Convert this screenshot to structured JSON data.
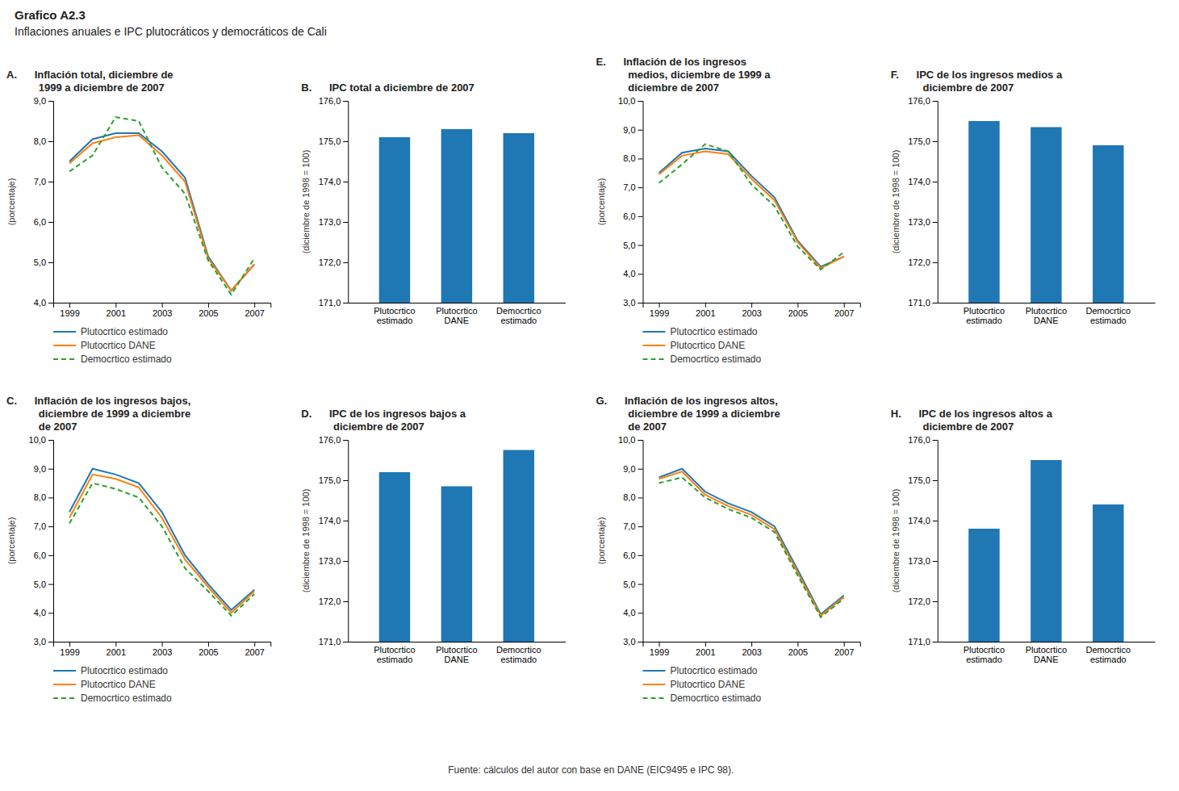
{
  "title": "Grafico A2.3",
  "subtitle": "Inflaciones anuales e IPC plutocráticos y democráticos de Cali",
  "annotations": [
    "Fuente: cálculos del autor con base en DANE (EIC9495 e IPC 98)."
  ],
  "chart_data": [
    {
      "type": "line",
      "title": "A.      Inflación total, diciembre de\n           1999 a diciembre de 2007",
      "ylabel": "(porcentaje)",
      "x": [
        1999,
        2000,
        2001,
        2002,
        2003,
        2004,
        2005,
        2006,
        2007
      ],
      "xlim": [
        1998.3,
        2007.7
      ],
      "xticks": [
        1999,
        2001,
        2003,
        2005,
        2007
      ],
      "ylim": [
        4.0,
        9.0
      ],
      "yticks": [
        {
          "value": 4.0,
          "label": "4,0"
        },
        {
          "value": 5.0,
          "label": "5,0"
        },
        {
          "value": 6.0,
          "label": "6,0"
        },
        {
          "value": 7.0,
          "label": "7,0"
        },
        {
          "value": 8.0,
          "label": "8,0"
        },
        {
          "value": 9.0,
          "label": "9,0"
        }
      ],
      "series": [
        {
          "name": "Plutocrtico estimado",
          "values": [
            7.5,
            8.05,
            8.2,
            8.2,
            7.75,
            7.1,
            5.15,
            4.3,
            4.95
          ]
        },
        {
          "name": "Plutocrtico DANE",
          "values": [
            7.45,
            7.95,
            8.1,
            8.15,
            7.65,
            7.0,
            5.1,
            4.3,
            4.95
          ]
        },
        {
          "name": "Democrtico estimado",
          "values": [
            7.25,
            7.65,
            8.6,
            8.5,
            7.35,
            6.7,
            5.05,
            4.2,
            5.1
          ],
          "line_style": "dashed"
        }
      ],
      "legend": "bottom",
      "grid": false
    },
    {
      "type": "bar",
      "title": "B.      IPC total a diciembre de 2007",
      "ylabel": "(diciembre de 1998 = 100)",
      "categories": [
        "Plutocrtico\nestimado",
        "Plutocrtico\nDANE",
        "Democrtico\nestimado"
      ],
      "values": [
        175.1,
        175.3,
        175.2
      ],
      "ylim": [
        171.0,
        176.0
      ],
      "yticks": [
        {
          "value": 171.0,
          "label": "171,0"
        },
        {
          "value": 172.0,
          "label": "172,0"
        },
        {
          "value": 173.0,
          "label": "173,0"
        },
        {
          "value": 174.0,
          "label": "174,0"
        },
        {
          "value": 175.0,
          "label": "175,0"
        },
        {
          "value": 176.0,
          "label": "176,0"
        }
      ],
      "grid": false
    },
    {
      "type": "line",
      "title": "E.      Inflación de los ingresos\n           medios, diciembre de 1999 a\n           diciembre de 2007",
      "ylabel": "(porcentaje)",
      "x": [
        1999,
        2000,
        2001,
        2002,
        2003,
        2004,
        2005,
        2006,
        2007
      ],
      "xlim": [
        1998.3,
        2007.7
      ],
      "xticks": [
        1999,
        2001,
        2003,
        2005,
        2007
      ],
      "ylim": [
        3.0,
        10.0
      ],
      "yticks": [
        {
          "value": 3.0,
          "label": "3,0"
        },
        {
          "value": 4.0,
          "label": "4,0"
        },
        {
          "value": 5.0,
          "label": "5,0"
        },
        {
          "value": 6.0,
          "label": "6,0"
        },
        {
          "value": 7.0,
          "label": "7,0"
        },
        {
          "value": 8.0,
          "label": "8,0"
        },
        {
          "value": 9.0,
          "label": "9,0"
        },
        {
          "value": 10.0,
          "label": "10,0"
        }
      ],
      "series": [
        {
          "name": "Plutocrtico estimado",
          "values": [
            7.5,
            8.2,
            8.35,
            8.25,
            7.4,
            6.65,
            5.15,
            4.25,
            4.6
          ]
        },
        {
          "name": "Plutocrtico DANE",
          "values": [
            7.45,
            8.1,
            8.25,
            8.15,
            7.3,
            6.55,
            5.1,
            4.2,
            4.6
          ]
        },
        {
          "name": "Democrtico estimado",
          "values": [
            7.15,
            7.8,
            8.5,
            8.25,
            7.1,
            6.35,
            4.95,
            4.15,
            4.75
          ],
          "line_style": "dashed"
        }
      ],
      "legend": "bottom",
      "grid": false
    },
    {
      "type": "bar",
      "title": "F.      IPC de los ingresos medios a\n           diciembre de 2007",
      "ylabel": "(diciembre de 1998 = 100)",
      "categories": [
        "Plutocrtico\nestimado",
        "Plutocrtico\nDANE",
        "Democrtico\nestimado"
      ],
      "values": [
        175.5,
        175.35,
        174.9
      ],
      "ylim": [
        171.0,
        176.0
      ],
      "yticks": [
        {
          "value": 171.0,
          "label": "171,0"
        },
        {
          "value": 172.0,
          "label": "172,0"
        },
        {
          "value": 173.0,
          "label": "173,0"
        },
        {
          "value": 174.0,
          "label": "174,0"
        },
        {
          "value": 175.0,
          "label": "175,0"
        },
        {
          "value": 176.0,
          "label": "176,0"
        }
      ],
      "grid": false
    },
    {
      "type": "line",
      "title": "C.      Inflación de los ingresos bajos,\n           diciembre de 1999 a diciembre\n           de 2007",
      "ylabel": "(porcentaje)",
      "x": [
        1999,
        2000,
        2001,
        2002,
        2003,
        2004,
        2005,
        2006,
        2007
      ],
      "xlim": [
        1998.3,
        2007.7
      ],
      "xticks": [
        1999,
        2001,
        2003,
        2005,
        2007
      ],
      "ylim": [
        3.0,
        10.0
      ],
      "yticks": [
        {
          "value": 3.0,
          "label": "3,0"
        },
        {
          "value": 4.0,
          "label": "4,0"
        },
        {
          "value": 5.0,
          "label": "5,0"
        },
        {
          "value": 6.0,
          "label": "6,0"
        },
        {
          "value": 7.0,
          "label": "7,0"
        },
        {
          "value": 8.0,
          "label": "8,0"
        },
        {
          "value": 9.0,
          "label": "9,0"
        },
        {
          "value": 10.0,
          "label": "10,0"
        }
      ],
      "series": [
        {
          "name": "Plutocrtico estimado",
          "values": [
            7.5,
            9.0,
            8.8,
            8.5,
            7.5,
            6.0,
            5.0,
            4.1,
            4.8
          ]
        },
        {
          "name": "Plutocrtico DANE",
          "values": [
            7.3,
            8.8,
            8.65,
            8.35,
            7.3,
            5.85,
            4.9,
            4.0,
            4.75
          ]
        },
        {
          "name": "Democrtico estimado",
          "values": [
            7.1,
            8.5,
            8.3,
            8.0,
            7.0,
            5.55,
            4.75,
            3.9,
            4.65
          ],
          "line_style": "dashed"
        }
      ],
      "legend": "bottom",
      "grid": false
    },
    {
      "type": "bar",
      "title": "D.      IPC de los ingresos bajos a\n           diciembre de 2007",
      "ylabel": "(diciembre de 1998 = 100)",
      "categories": [
        "Plutocrtico\nestimado",
        "Plutocrtico\nDANE",
        "Democrtico\nestimado"
      ],
      "values": [
        175.2,
        174.85,
        175.75
      ],
      "ylim": [
        171.0,
        176.0
      ],
      "yticks": [
        {
          "value": 171.0,
          "label": "171,0"
        },
        {
          "value": 172.0,
          "label": "172,0"
        },
        {
          "value": 173.0,
          "label": "173,0"
        },
        {
          "value": 174.0,
          "label": "174,0"
        },
        {
          "value": 175.0,
          "label": "175,0"
        },
        {
          "value": 176.0,
          "label": "176,0"
        }
      ],
      "grid": false
    },
    {
      "type": "line",
      "title": "G.      Inflación de los ingresos altos,\n           diciembre de 1999 a diciembre\n           de 2007",
      "ylabel": "(porcentaje)",
      "x": [
        1999,
        2000,
        2001,
        2002,
        2003,
        2004,
        2005,
        2006,
        2007
      ],
      "xlim": [
        1998.3,
        2007.7
      ],
      "xticks": [
        1999,
        2001,
        2003,
        2005,
        2007
      ],
      "ylim": [
        3.0,
        10.0
      ],
      "yticks": [
        {
          "value": 3.0,
          "label": "3,0"
        },
        {
          "value": 4.0,
          "label": "4,0"
        },
        {
          "value": 5.0,
          "label": "5,0"
        },
        {
          "value": 6.0,
          "label": "6,0"
        },
        {
          "value": 7.0,
          "label": "7,0"
        },
        {
          "value": 8.0,
          "label": "8,0"
        },
        {
          "value": 9.0,
          "label": "9,0"
        },
        {
          "value": 10.0,
          "label": "10,0"
        }
      ],
      "series": [
        {
          "name": "Plutocrtico estimado",
          "values": [
            8.7,
            9.0,
            8.2,
            7.8,
            7.5,
            7.0,
            5.5,
            3.95,
            4.6
          ]
        },
        {
          "name": "Plutocrtico DANE",
          "values": [
            8.65,
            8.9,
            8.1,
            7.7,
            7.4,
            6.9,
            5.4,
            3.9,
            4.55
          ]
        },
        {
          "name": "Democrtico estimado",
          "values": [
            8.5,
            8.7,
            8.0,
            7.6,
            7.3,
            6.8,
            5.3,
            3.85,
            4.5
          ],
          "line_style": "dashed"
        }
      ],
      "legend": "bottom",
      "grid": false
    },
    {
      "type": "bar",
      "title": "H.      IPC de los ingresos altos a\n           diciembre de 2007",
      "ylabel": "(diciembre de 1998 = 100)",
      "categories": [
        "Plutocrtico\nestimado",
        "Plutocrtico\nDANE",
        "Democrtico\nestimado"
      ],
      "values": [
        173.8,
        175.5,
        174.4
      ],
      "ylim": [
        171.0,
        176.0
      ],
      "yticks": [
        {
          "value": 171.0,
          "label": "171,0"
        },
        {
          "value": 172.0,
          "label": "172,0"
        },
        {
          "value": 173.0,
          "label": "173,0"
        },
        {
          "value": 174.0,
          "label": "174,0"
        },
        {
          "value": 175.0,
          "label": "175,0"
        },
        {
          "value": 176.0,
          "label": "176,0"
        }
      ],
      "grid": false
    }
  ]
}
